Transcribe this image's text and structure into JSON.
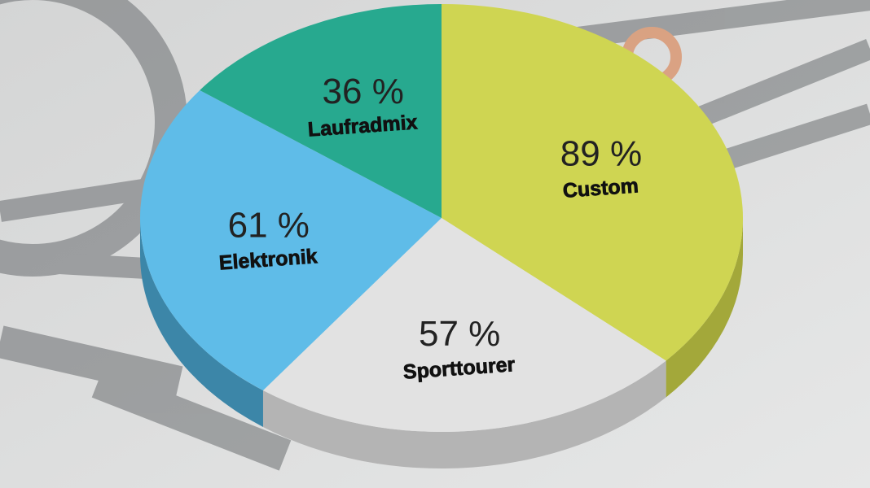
{
  "chart_data": {
    "type": "pie",
    "categories": [
      "Custom",
      "Sporttourer",
      "Elektronik",
      "Laufradmix"
    ],
    "values": [
      89,
      57,
      61,
      36
    ],
    "value_labels": [
      "89 %",
      "57 %",
      "61 %",
      "36 %"
    ],
    "colors": [
      "#cfd552",
      "#e2e2e2",
      "#5fbce8",
      "#27a98f"
    ],
    "side_colors": [
      "#a3a83a",
      "#b4b4b4",
      "#3c86a8",
      "#1d7d69"
    ]
  }
}
